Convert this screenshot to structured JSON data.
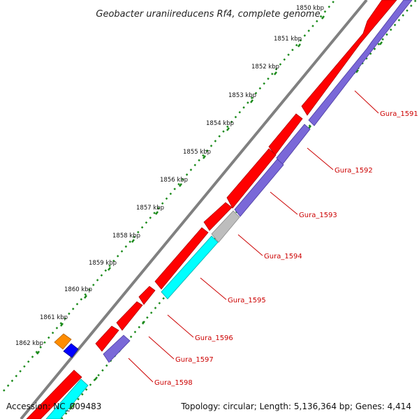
{
  "title": "Geobacter uraniireducens Rf4, complete genome",
  "ticks": [
    "1850 kbp",
    "1851 kbp",
    "1852 kbp",
    "1853 kbp",
    "1854 kbp",
    "1855 kbp",
    "1856 kbp",
    "1857 kbp",
    "1858 kbp",
    "1859 kbp",
    "1860 kbp",
    "1861 kbp",
    "1862 kbp"
  ],
  "genes": [
    {
      "label": "Gura_1591",
      "color": "#ff0000",
      "strand": "+"
    },
    {
      "label": "Gura_1592",
      "color": "#ff0000",
      "strand": "+"
    },
    {
      "label": "Gura_1593",
      "color": "#ff0000",
      "strand": "+"
    },
    {
      "label": "Gura_1594",
      "color": "#bdbdbd",
      "strand": "-"
    },
    {
      "label": "Gura_1595",
      "color": "#00ffff",
      "strand": "-"
    },
    {
      "label": "Gura_1596",
      "color": "#ff0000",
      "strand": "+"
    },
    {
      "label": "Gura_1597",
      "color": "#ff0000",
      "strand": "+"
    },
    {
      "label": "Gura_1598",
      "color": "#7a68d8",
      "strand": "-"
    }
  ],
  "colors": {
    "forward": "#ff0000",
    "reverse": "#7a68d8",
    "grey": "#bdbdbd",
    "cyan": "#00ffff",
    "orange": "#ff8c00",
    "blue": "#0000ff",
    "backbone": "#808080",
    "dots": "#1a8a1a",
    "label": "#cc0000"
  },
  "footer": {
    "accession": "Accession: NC_009483",
    "summary": "Topology: circular; Length: 5,136,364 bp; Genes: 4,414"
  }
}
